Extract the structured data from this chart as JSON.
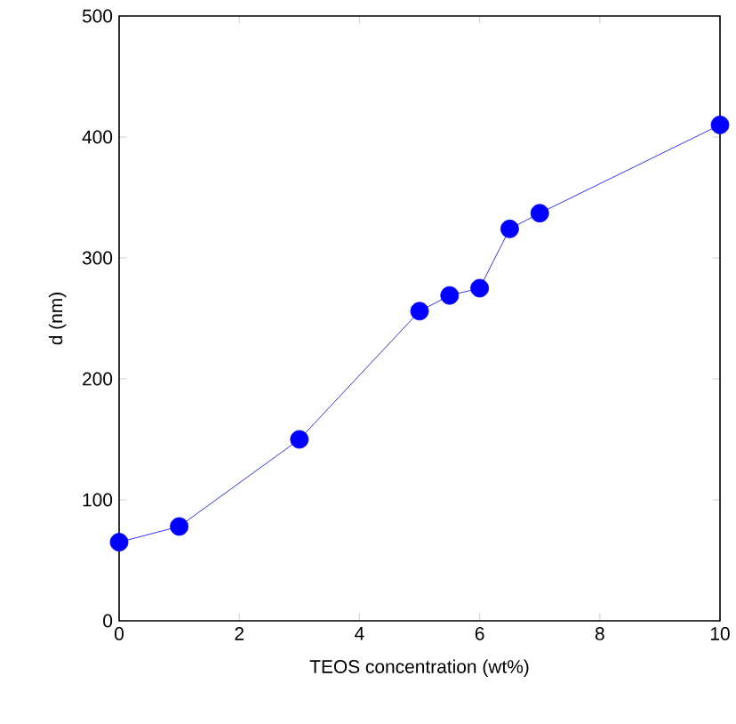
{
  "chart_data": {
    "type": "line",
    "xlabel": "TEOS concentration (wt%)",
    "ylabel": "d (nm)",
    "x": [
      0,
      1,
      3,
      5,
      5.5,
      6,
      6.5,
      7,
      10
    ],
    "series": [
      {
        "color": "#0000ff",
        "values": [
          65,
          78,
          150,
          256,
          269,
          275,
          324,
          337,
          410
        ]
      }
    ],
    "xlim": [
      0,
      10
    ],
    "ylim": [
      0,
      500
    ],
    "xticks": [
      0,
      2,
      4,
      6,
      8,
      10
    ],
    "yticks": [
      0,
      100,
      200,
      300,
      400,
      500
    ],
    "marker": "circle",
    "line_style": "solid",
    "grid": false
  }
}
